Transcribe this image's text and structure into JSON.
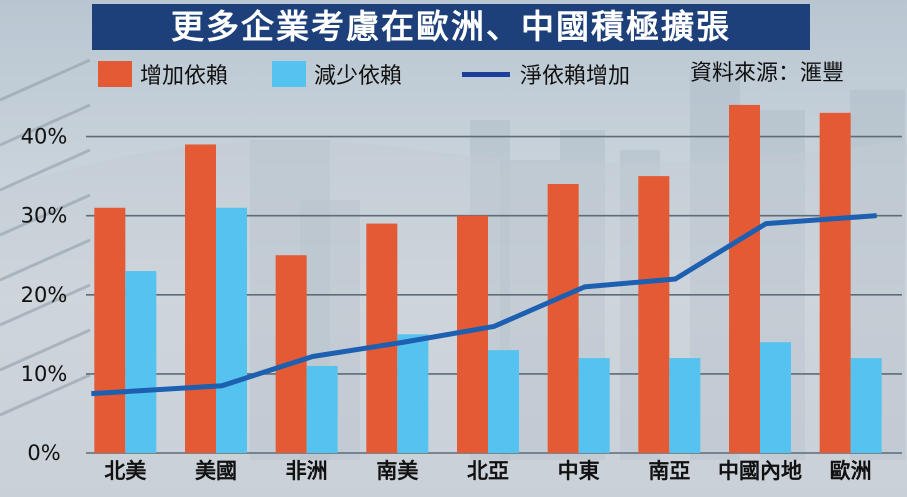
{
  "title": "更多企業考慮在歐洲、中國積極擴張",
  "legend": {
    "increase": "增加依賴",
    "decrease": "減少依賴",
    "net": "淨依賴增加"
  },
  "source": "資料來源：滙豐",
  "colors": {
    "increase": "#e35a34",
    "decrease": "#55c3ef",
    "net": "#1d5fb0"
  },
  "chart_data": {
    "type": "bar",
    "title": "更多企業考慮在歐洲、中國積極擴張",
    "categories": [
      "北美",
      "美國",
      "非洲",
      "南美",
      "北亞",
      "中東",
      "南亞",
      "中國內地",
      "歐洲"
    ],
    "series": [
      {
        "name": "增加依賴",
        "type": "bar",
        "values": [
          31,
          39,
          25,
          29,
          30,
          34,
          35,
          44,
          43
        ]
      },
      {
        "name": "減少依賴",
        "type": "bar",
        "values": [
          23,
          31,
          11,
          15,
          13,
          12,
          12,
          14,
          12
        ]
      },
      {
        "name": "淨依賴增加",
        "type": "line",
        "values": [
          7.5,
          8.5,
          12.2,
          14,
          16,
          21,
          22,
          29,
          30
        ]
      }
    ],
    "ylim": [
      0,
      45
    ],
    "yticks": [
      "0%",
      "10%",
      "20%",
      "30%",
      "40%"
    ],
    "ytick_values": [
      0,
      10,
      20,
      30,
      40
    ],
    "grid": true
  }
}
